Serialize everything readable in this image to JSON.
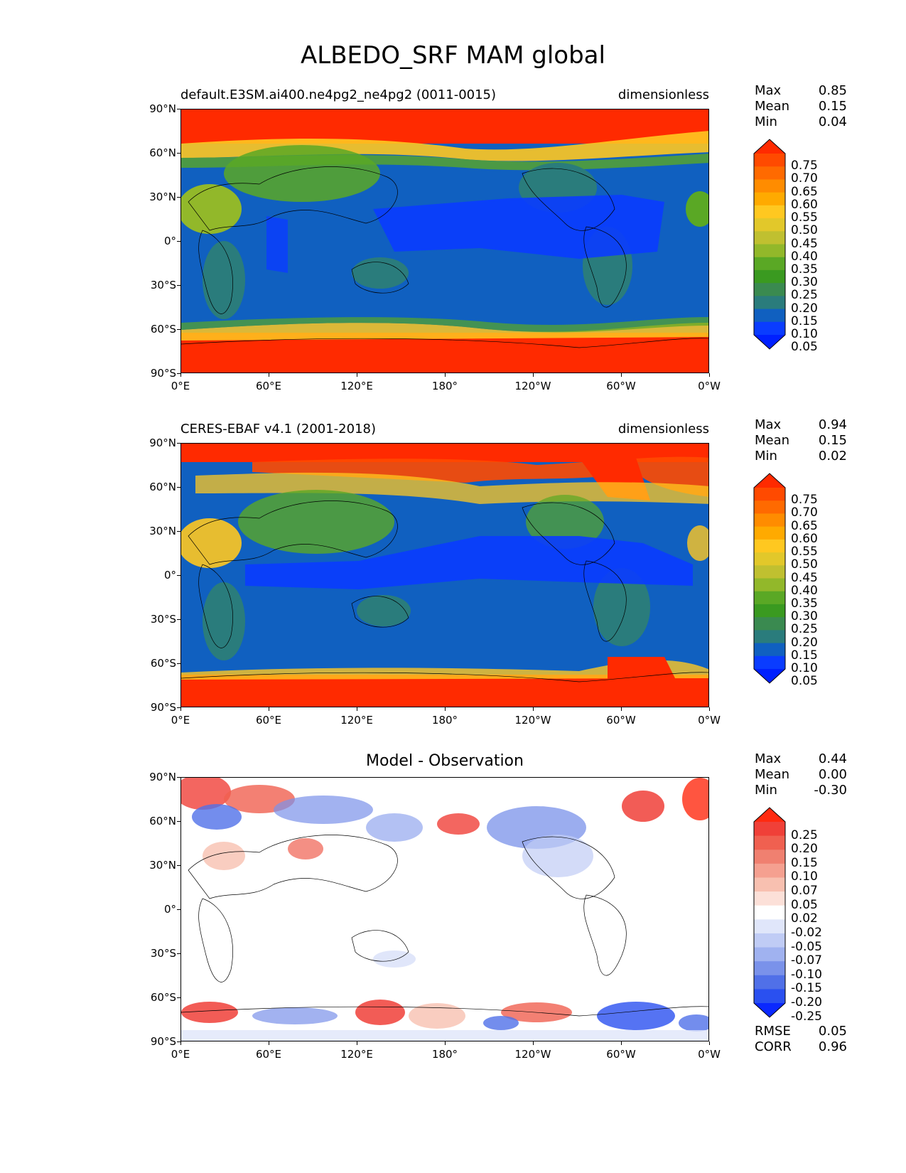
{
  "figure": {
    "title": "ALBEDO_SRF MAM global"
  },
  "axes": {
    "lat_ticks": [
      "90°N",
      "60°N",
      "30°N",
      "0°",
      "30°S",
      "60°S",
      "90°S"
    ],
    "lon_ticks": [
      "0°E",
      "60°E",
      "120°E",
      "180°",
      "120°W",
      "60°W",
      "0°W"
    ]
  },
  "panels": [
    {
      "id": "model",
      "title_left": "default.E3SM.ai400.ne4pg2_ne4pg2 (0011-0015)",
      "title_right": "dimensionless",
      "title_center": "",
      "stats": [
        {
          "label": "Max",
          "value": "0.85"
        },
        {
          "label": "Mean",
          "value": "0.15"
        },
        {
          "label": "Min",
          "value": "0.04"
        }
      ],
      "colorbar": {
        "levels": [
          "0.75",
          "0.70",
          "0.65",
          "0.60",
          "0.55",
          "0.50",
          "0.45",
          "0.40",
          "0.35",
          "0.30",
          "0.25",
          "0.20",
          "0.15",
          "0.10",
          "0.05"
        ],
        "colors": [
          "#ff2a00",
          "#ff4a00",
          "#ff6a00",
          "#ff8c00",
          "#ffaa00",
          "#ffc820",
          "#e2c82a",
          "#c0c030",
          "#92b82a",
          "#5aa825",
          "#3a9a20",
          "#3a8a50",
          "#2a7c7c",
          "#1060c0",
          "#0a3cff",
          "#0020ff"
        ],
        "extend": "both"
      },
      "extra_stats": []
    },
    {
      "id": "obs",
      "title_left": "CERES-EBAF v4.1 (2001-2018)",
      "title_right": "dimensionless",
      "title_center": "",
      "stats": [
        {
          "label": "Max",
          "value": "0.94"
        },
        {
          "label": "Mean",
          "value": "0.15"
        },
        {
          "label": "Min",
          "value": "0.02"
        }
      ],
      "colorbar": {
        "levels": [
          "0.75",
          "0.70",
          "0.65",
          "0.60",
          "0.55",
          "0.50",
          "0.45",
          "0.40",
          "0.35",
          "0.30",
          "0.25",
          "0.20",
          "0.15",
          "0.10",
          "0.05"
        ],
        "colors": [
          "#ff2a00",
          "#ff4a00",
          "#ff6a00",
          "#ff8c00",
          "#ffaa00",
          "#ffc820",
          "#e2c82a",
          "#c0c030",
          "#92b82a",
          "#5aa825",
          "#3a9a20",
          "#3a8a50",
          "#2a7c7c",
          "#1060c0",
          "#0a3cff",
          "#0020ff"
        ],
        "extend": "both"
      },
      "extra_stats": []
    },
    {
      "id": "diff",
      "title_left": "",
      "title_right": "",
      "title_center": "Model - Observation",
      "stats": [
        {
          "label": "Max",
          "value": "0.44"
        },
        {
          "label": "Mean",
          "value": "0.00"
        },
        {
          "label": "Min",
          "value": "-0.30"
        }
      ],
      "colorbar": {
        "levels": [
          "0.25",
          "0.20",
          "0.15",
          "0.10",
          "0.07",
          "0.05",
          "0.02",
          "-0.02",
          "-0.05",
          "-0.07",
          "-0.10",
          "-0.15",
          "-0.20",
          "-0.25"
        ],
        "colors": [
          "#ff2a10",
          "#f04038",
          "#f06050",
          "#f08070",
          "#f5a090",
          "#f8c0b0",
          "#fce0d8",
          "#ffffff",
          "#e0e6fa",
          "#c0ccf5",
          "#a0b2f0",
          "#7a92ea",
          "#5070e8",
          "#2a50f0",
          "#0a28ff"
        ],
        "extend": "both"
      },
      "extra_stats": [
        {
          "label": "RMSE",
          "value": "0.05"
        },
        {
          "label": "CORR",
          "value": "0.96"
        }
      ]
    }
  ]
}
